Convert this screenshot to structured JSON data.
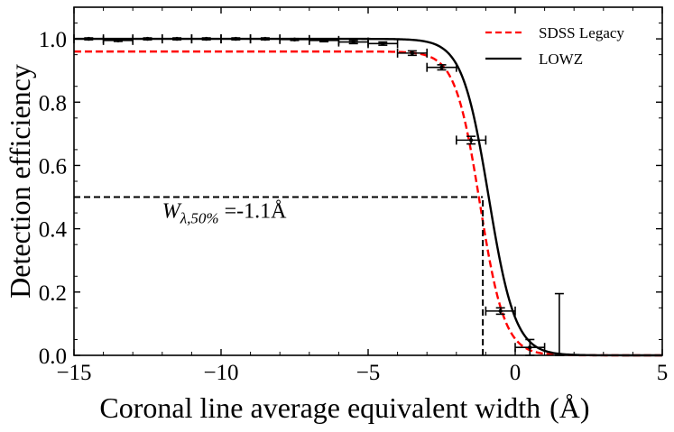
{
  "chart_data": {
    "type": "line",
    "title": "",
    "xlabel": "Coronal line average equivalent width",
    "xlabel_unit": "(Å)",
    "ylabel": "Detection efficiency",
    "xlim": [
      -15,
      5
    ],
    "ylim": [
      0,
      1.1
    ],
    "x_ticks": [
      -15,
      -10,
      -5,
      0,
      5
    ],
    "x_tick_labels": [
      "−15",
      "−10",
      "−5",
      "0",
      "5"
    ],
    "y_ticks": [
      0.0,
      0.2,
      0.4,
      0.6,
      0.8,
      1.0
    ],
    "y_tick_labels": [
      "0.0",
      "0.2",
      "0.4",
      "0.6",
      "0.8",
      "1.0"
    ],
    "grid": false,
    "legend_position": "top-right",
    "series": [
      {
        "name": "SDSS Legacy",
        "style": "dashed",
        "color": "#ff0000",
        "model": "logistic",
        "max": 0.96,
        "x50": -1.2,
        "width": 0.42
      },
      {
        "name": "LOWZ",
        "style": "solid",
        "color": "#000000",
        "model": "logistic",
        "max": 1.0,
        "x50": -0.9,
        "width": 0.45
      }
    ],
    "data_points": [
      {
        "x": -14.5,
        "y": 1.0,
        "xerr": 0.5,
        "yerr": 0.003
      },
      {
        "x": -13.5,
        "y": 0.995,
        "xerr": 0.5,
        "yerr": 0.003
      },
      {
        "x": -12.5,
        "y": 1.0,
        "xerr": 0.5,
        "yerr": 0.003
      },
      {
        "x": -11.5,
        "y": 1.0,
        "xerr": 0.5,
        "yerr": 0.003
      },
      {
        "x": -10.5,
        "y": 1.0,
        "xerr": 0.5,
        "yerr": 0.003
      },
      {
        "x": -9.5,
        "y": 1.0,
        "xerr": 0.5,
        "yerr": 0.003
      },
      {
        "x": -8.5,
        "y": 1.0,
        "xerr": 0.5,
        "yerr": 0.003
      },
      {
        "x": -7.5,
        "y": 0.998,
        "xerr": 0.5,
        "yerr": 0.003
      },
      {
        "x": -6.5,
        "y": 0.995,
        "xerr": 0.5,
        "yerr": 0.004
      },
      {
        "x": -5.5,
        "y": 0.99,
        "xerr": 0.5,
        "yerr": 0.005
      },
      {
        "x": -4.5,
        "y": 0.985,
        "xerr": 0.5,
        "yerr": 0.005
      },
      {
        "x": -3.5,
        "y": 0.955,
        "xerr": 0.5,
        "yerr": 0.007
      },
      {
        "x": -2.5,
        "y": 0.91,
        "xerr": 0.5,
        "yerr": 0.008
      },
      {
        "x": -1.5,
        "y": 0.68,
        "xerr": 0.5,
        "yerr": 0.012
      },
      {
        "x": -0.5,
        "y": 0.14,
        "xerr": 0.5,
        "yerr": 0.01
      },
      {
        "x": 0.5,
        "y": 0.025,
        "xerr": 0.5,
        "yerr": 0.025
      },
      {
        "x": 1.5,
        "y": 0.0,
        "xerr": 0.0,
        "yerr_lower": 0.0,
        "yerr_upper": 0.195
      }
    ],
    "reference_lines": [
      {
        "orientation": "horizontal",
        "y": 0.5,
        "x_from": -15,
        "x_to": -1.1,
        "style": "dashed"
      },
      {
        "orientation": "vertical",
        "x": -1.1,
        "y_from": 0.0,
        "y_to": 0.5,
        "style": "dashed"
      }
    ],
    "annotation": {
      "symbol": "W",
      "subscript": "λ,50%",
      "value_text": " =-1.1Å",
      "x": -12.0,
      "y": 0.435
    }
  }
}
